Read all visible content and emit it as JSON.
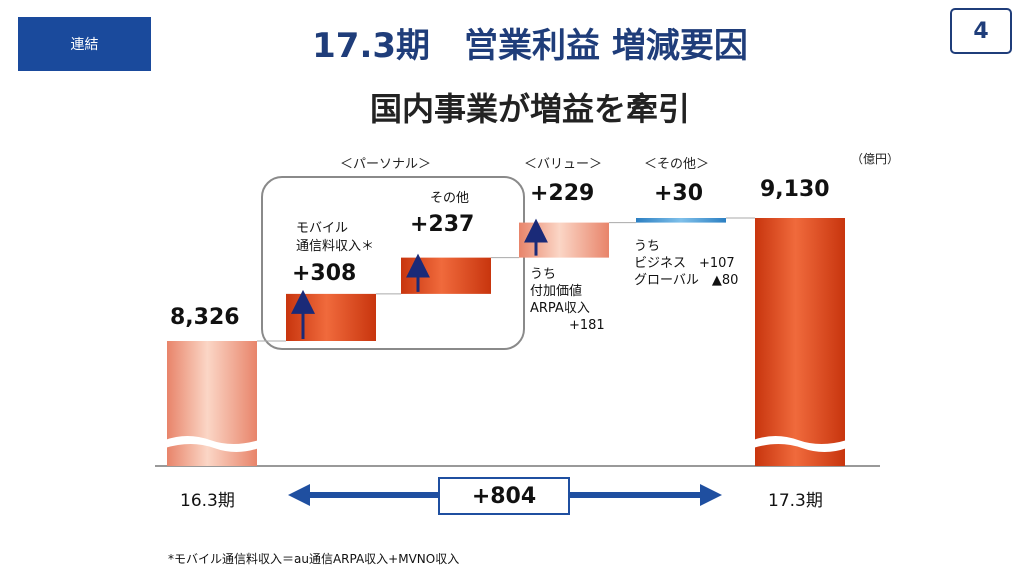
{
  "header": {
    "tag": "連結",
    "title": "17.3期　営業利益 増減要因",
    "page_number": "4",
    "subtitle": "国内事業が増益を牽引"
  },
  "unit_label": "（億円）",
  "chart_data": {
    "type": "waterfall",
    "title": "17.3期　営業利益 増減要因",
    "unit": "（億円）",
    "start": {
      "label": "16.3期",
      "value": 8326,
      "display": "8,326"
    },
    "end": {
      "label": "17.3期",
      "value": 9130,
      "display": "9,130"
    },
    "steps": [
      {
        "group": "＜パーソナル＞",
        "name_lines": [
          "モバイル",
          "通信料収入＊"
        ],
        "value": 308,
        "display": "+308"
      },
      {
        "group": "＜パーソナル＞",
        "name_lines": [
          "その他"
        ],
        "value": 237,
        "display": "+237"
      },
      {
        "group": "＜バリュー＞",
        "name_lines": [],
        "value": 229,
        "display": "+229"
      },
      {
        "group": "＜その他＞",
        "name_lines": [],
        "value": 30,
        "display": "+30"
      }
    ],
    "groups": [
      "＜パーソナル＞",
      "＜バリュー＞",
      "＜その他＞"
    ],
    "total_change": {
      "value": 804,
      "display": "+804"
    },
    "colors": {
      "bar": "#e84a1c",
      "bar_light": "#f4a48c",
      "other_bar": "#3a8fcf",
      "arrow": "#1a2a78",
      "delta_arrow": "#1f4fa0"
    }
  },
  "annotations": {
    "value_breakdown": "うち\n付加価値\nARPA収入\n　　　+181",
    "other_breakdown": "うち\nビジネス　+107\nグローバル　▲80"
  },
  "footnote": "*モバイル通信料収入＝au通信ARPA収入+MVNO収入"
}
